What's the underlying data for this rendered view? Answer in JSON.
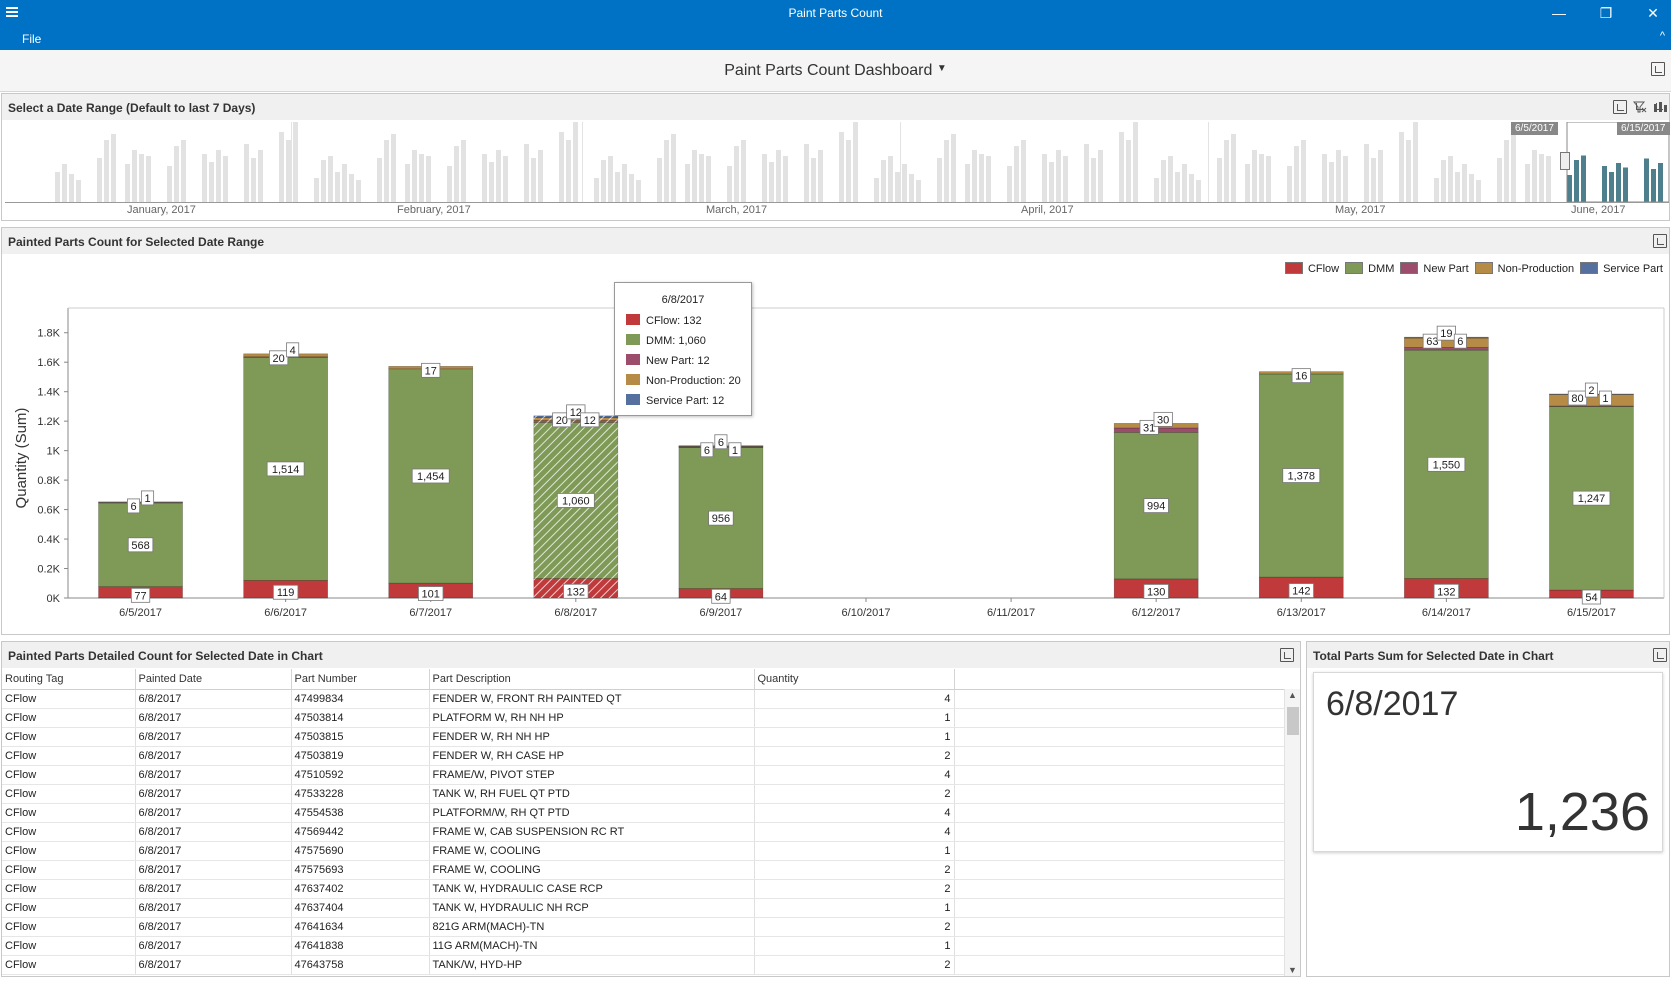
{
  "window": {
    "title": "Paint Parts Count",
    "minimize": "—",
    "restore": "❐",
    "close": "✕"
  },
  "menu": {
    "file": "File",
    "collapse": "^"
  },
  "dashboard": {
    "title": "Paint Parts Count Dashboard"
  },
  "range_panel": {
    "title": "Select a Date Range (Default to last 7 Days)",
    "months": [
      "January, 2017",
      "February, 2017",
      "March, 2017",
      "April, 2017",
      "May, 2017",
      "June, 2017"
    ],
    "start_flag": "6/5/2017",
    "end_flag": "6/15/2017"
  },
  "chart_panel": {
    "title": "Painted Parts Count for Selected Date Range"
  },
  "chart_data": {
    "type": "bar",
    "stacked": true,
    "ylabel": "Quantity (Sum)",
    "ylim": [
      0,
      1900
    ],
    "yticks": [
      "0K",
      "0.2K",
      "0.4K",
      "0.6K",
      "0.8K",
      "1K",
      "1.2K",
      "1.4K",
      "1.6K",
      "1.8K"
    ],
    "categories": [
      "6/5/2017",
      "6/6/2017",
      "6/7/2017",
      "6/8/2017",
      "6/9/2017",
      "6/10/2017",
      "6/11/2017",
      "6/12/2017",
      "6/13/2017",
      "6/14/2017",
      "6/15/2017"
    ],
    "series": [
      {
        "name": "CFlow",
        "color": "#c0393b",
        "values": [
          77,
          119,
          101,
          132,
          64,
          0,
          0,
          130,
          142,
          132,
          54
        ]
      },
      {
        "name": "DMM",
        "color": "#7f9a57",
        "values": [
          568,
          1514,
          1454,
          1060,
          956,
          0,
          0,
          994,
          1378,
          1550,
          1247
        ]
      },
      {
        "name": "New Part",
        "color": "#9c4d6b",
        "values": [
          0,
          4,
          0,
          12,
          6,
          0,
          0,
          30,
          0,
          19,
          2
        ]
      },
      {
        "name": "Non-Production",
        "color": "#b58b46",
        "values": [
          6,
          20,
          17,
          20,
          6,
          0,
          0,
          31,
          16,
          63,
          80
        ]
      },
      {
        "name": "Service Part",
        "color": "#55709e",
        "values": [
          1,
          0,
          0,
          12,
          1,
          0,
          0,
          0,
          0,
          6,
          1
        ]
      }
    ],
    "labels": [
      [
        "77",
        "568",
        "",
        "6",
        "1"
      ],
      [
        "119",
        "1,514",
        "4",
        "20",
        ""
      ],
      [
        "101",
        "1,454",
        "",
        "17",
        ""
      ],
      [
        "132",
        "1,060",
        "12",
        "20",
        "12"
      ],
      [
        "64",
        "956",
        "6",
        "6",
        "1"
      ],
      [
        "",
        "",
        "",
        "",
        ""
      ],
      [
        "",
        "",
        "",
        "",
        ""
      ],
      [
        "130",
        "994",
        "30",
        "31",
        ""
      ],
      [
        "142",
        "1,378",
        "",
        "16",
        ""
      ],
      [
        "132",
        "1,550",
        "19",
        "63",
        "6"
      ],
      [
        "54",
        "1,247",
        "2",
        "80",
        "1"
      ]
    ],
    "highlight_index": 3,
    "legend_position": "top-right",
    "grid": false
  },
  "tooltip": {
    "date": "6/8/2017",
    "rows": [
      {
        "text": "CFlow: 132",
        "color": "#c0393b"
      },
      {
        "text": "DMM: 1,060",
        "color": "#7f9a57"
      },
      {
        "text": "New Part: 12",
        "color": "#9c4d6b"
      },
      {
        "text": "Non-Production: 20",
        "color": "#b58b46"
      },
      {
        "text": "Service Part: 12",
        "color": "#55709e"
      }
    ]
  },
  "detail_panel": {
    "title": "Painted Parts Detailed Count for Selected Date in Chart",
    "columns": [
      "Routing Tag",
      "Painted Date",
      "Part Number",
      "Part Description",
      "Quantity"
    ],
    "rows": [
      [
        "CFlow",
        "6/8/2017",
        "47499834",
        "FENDER W, FRONT RH PAINTED QT",
        "4"
      ],
      [
        "CFlow",
        "6/8/2017",
        "47503814",
        "PLATFORM W, RH NH HP",
        "1"
      ],
      [
        "CFlow",
        "6/8/2017",
        "47503815",
        "FENDER W, RH NH HP",
        "1"
      ],
      [
        "CFlow",
        "6/8/2017",
        "47503819",
        "FENDER W, RH CASE HP",
        "2"
      ],
      [
        "CFlow",
        "6/8/2017",
        "47510592",
        "FRAME/W, PIVOT STEP",
        "4"
      ],
      [
        "CFlow",
        "6/8/2017",
        "47533228",
        "TANK W, RH FUEL QT PTD",
        "2"
      ],
      [
        "CFlow",
        "6/8/2017",
        "47554538",
        "PLATFORM/W, RH QT PTD",
        "4"
      ],
      [
        "CFlow",
        "6/8/2017",
        "47569442",
        "FRAME W, CAB SUSPENSION RC RT",
        "4"
      ],
      [
        "CFlow",
        "6/8/2017",
        "47575690",
        "FRAME W, COOLING",
        "1"
      ],
      [
        "CFlow",
        "6/8/2017",
        "47575693",
        "FRAME W, COOLING",
        "2"
      ],
      [
        "CFlow",
        "6/8/2017",
        "47637402",
        "TANK W, HYDRAULIC CASE RCP",
        "2"
      ],
      [
        "CFlow",
        "6/8/2017",
        "47637404",
        "TANK W, HYDRAULIC NH RCP",
        "1"
      ],
      [
        "CFlow",
        "6/8/2017",
        "47641634",
        "821G ARM(MACH)-TN",
        "2"
      ],
      [
        "CFlow",
        "6/8/2017",
        "47641838",
        "11G ARM(MACH)-TN",
        "1"
      ],
      [
        "CFlow",
        "6/8/2017",
        "47643758",
        "TANK/W, HYD-HP",
        "2"
      ]
    ]
  },
  "total_panel": {
    "title": "Total Parts Sum for Selected Date in Chart",
    "date": "6/8/2017",
    "value": "1,236"
  },
  "colors": {
    "titlebar": "#0072c6",
    "range_selected": "#4e7f8c",
    "range_unselected": "#e2e2e2"
  }
}
